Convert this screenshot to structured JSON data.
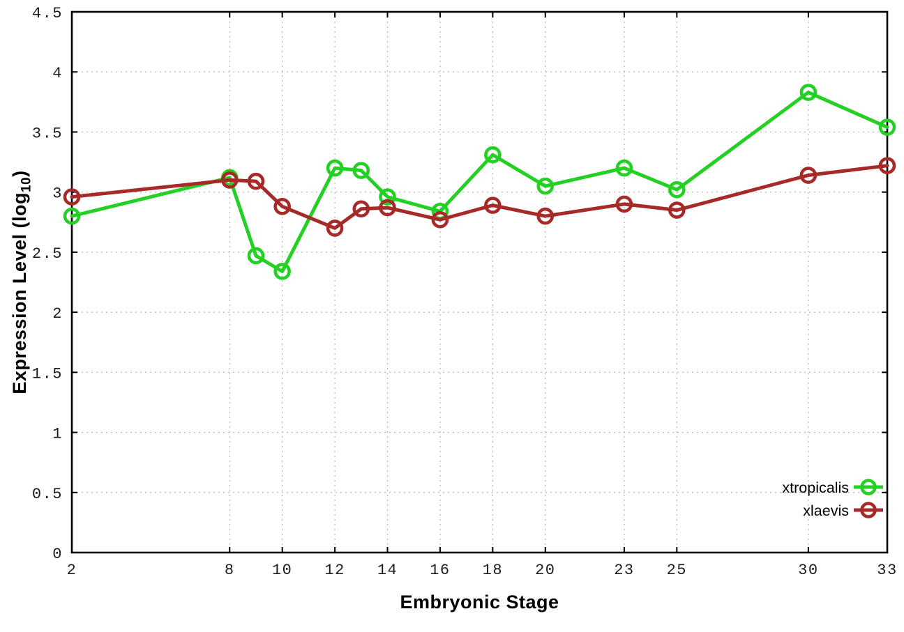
{
  "chart_data": {
    "type": "line",
    "title": "",
    "xlabel": "Embryonic Stage",
    "ylabel": "Expression Level (log10)",
    "ylabel_parts": {
      "main": "Expression Level (log",
      "sub": "10",
      "close": ")"
    },
    "xlim": [
      2,
      33
    ],
    "ylim": [
      0,
      4.5
    ],
    "xticks": [
      2,
      8,
      10,
      12,
      14,
      16,
      18,
      20,
      23,
      25,
      30,
      33
    ],
    "yticks": [
      0,
      0.5,
      1,
      1.5,
      2,
      2.5,
      3,
      3.5,
      4,
      4.5
    ],
    "ytick_labels": [
      "0",
      "0.5",
      "1",
      "1.5",
      "2",
      "2.5",
      "3",
      "3.5",
      "4",
      "4.5"
    ],
    "grid": true,
    "legend_position": "bottom-right",
    "marker": "open-circle",
    "x": [
      2,
      8,
      9,
      10,
      12,
      13,
      14,
      16,
      18,
      20,
      23,
      25,
      30,
      33
    ],
    "series": [
      {
        "name": "xtropicalis",
        "color": "#25d025",
        "values": [
          2.8,
          3.12,
          2.47,
          2.34,
          3.2,
          3.18,
          2.96,
          2.84,
          3.31,
          3.05,
          3.2,
          3.02,
          3.83,
          3.54
        ]
      },
      {
        "name": "xlaevis",
        "color": "#a62a28",
        "values": [
          2.96,
          3.1,
          3.09,
          2.88,
          2.7,
          2.86,
          2.87,
          2.77,
          2.89,
          2.8,
          2.9,
          2.85,
          3.14,
          3.22
        ]
      }
    ],
    "styles": {
      "grid_color": "#b5b5b5",
      "axis_color": "#000000",
      "tick_label_color": "#1c1c1c",
      "legend_text_color": "#000000"
    }
  }
}
